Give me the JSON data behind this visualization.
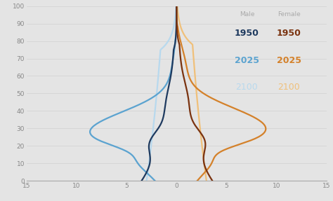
{
  "background_color": "#e4e4e4",
  "xlim": [
    -15,
    15
  ],
  "ylim": [
    0,
    100
  ],
  "yticks": [
    0,
    10,
    20,
    30,
    40,
    50,
    60,
    70,
    80,
    90,
    100
  ],
  "xticks": [
    -15,
    -10,
    -5,
    0,
    5,
    10,
    15
  ],
  "xtick_labels": [
    "15",
    "10",
    "5",
    "0",
    "5",
    "10",
    "15"
  ],
  "legend": {
    "male_label": "Male",
    "female_label": "Female",
    "years": [
      "1950",
      "2025",
      "2100"
    ],
    "male_colors": [
      "#1e3a5f",
      "#5ba3d0",
      "#b8d9ee"
    ],
    "female_colors": [
      "#7a3310",
      "#d4812a",
      "#f0c07a"
    ]
  }
}
